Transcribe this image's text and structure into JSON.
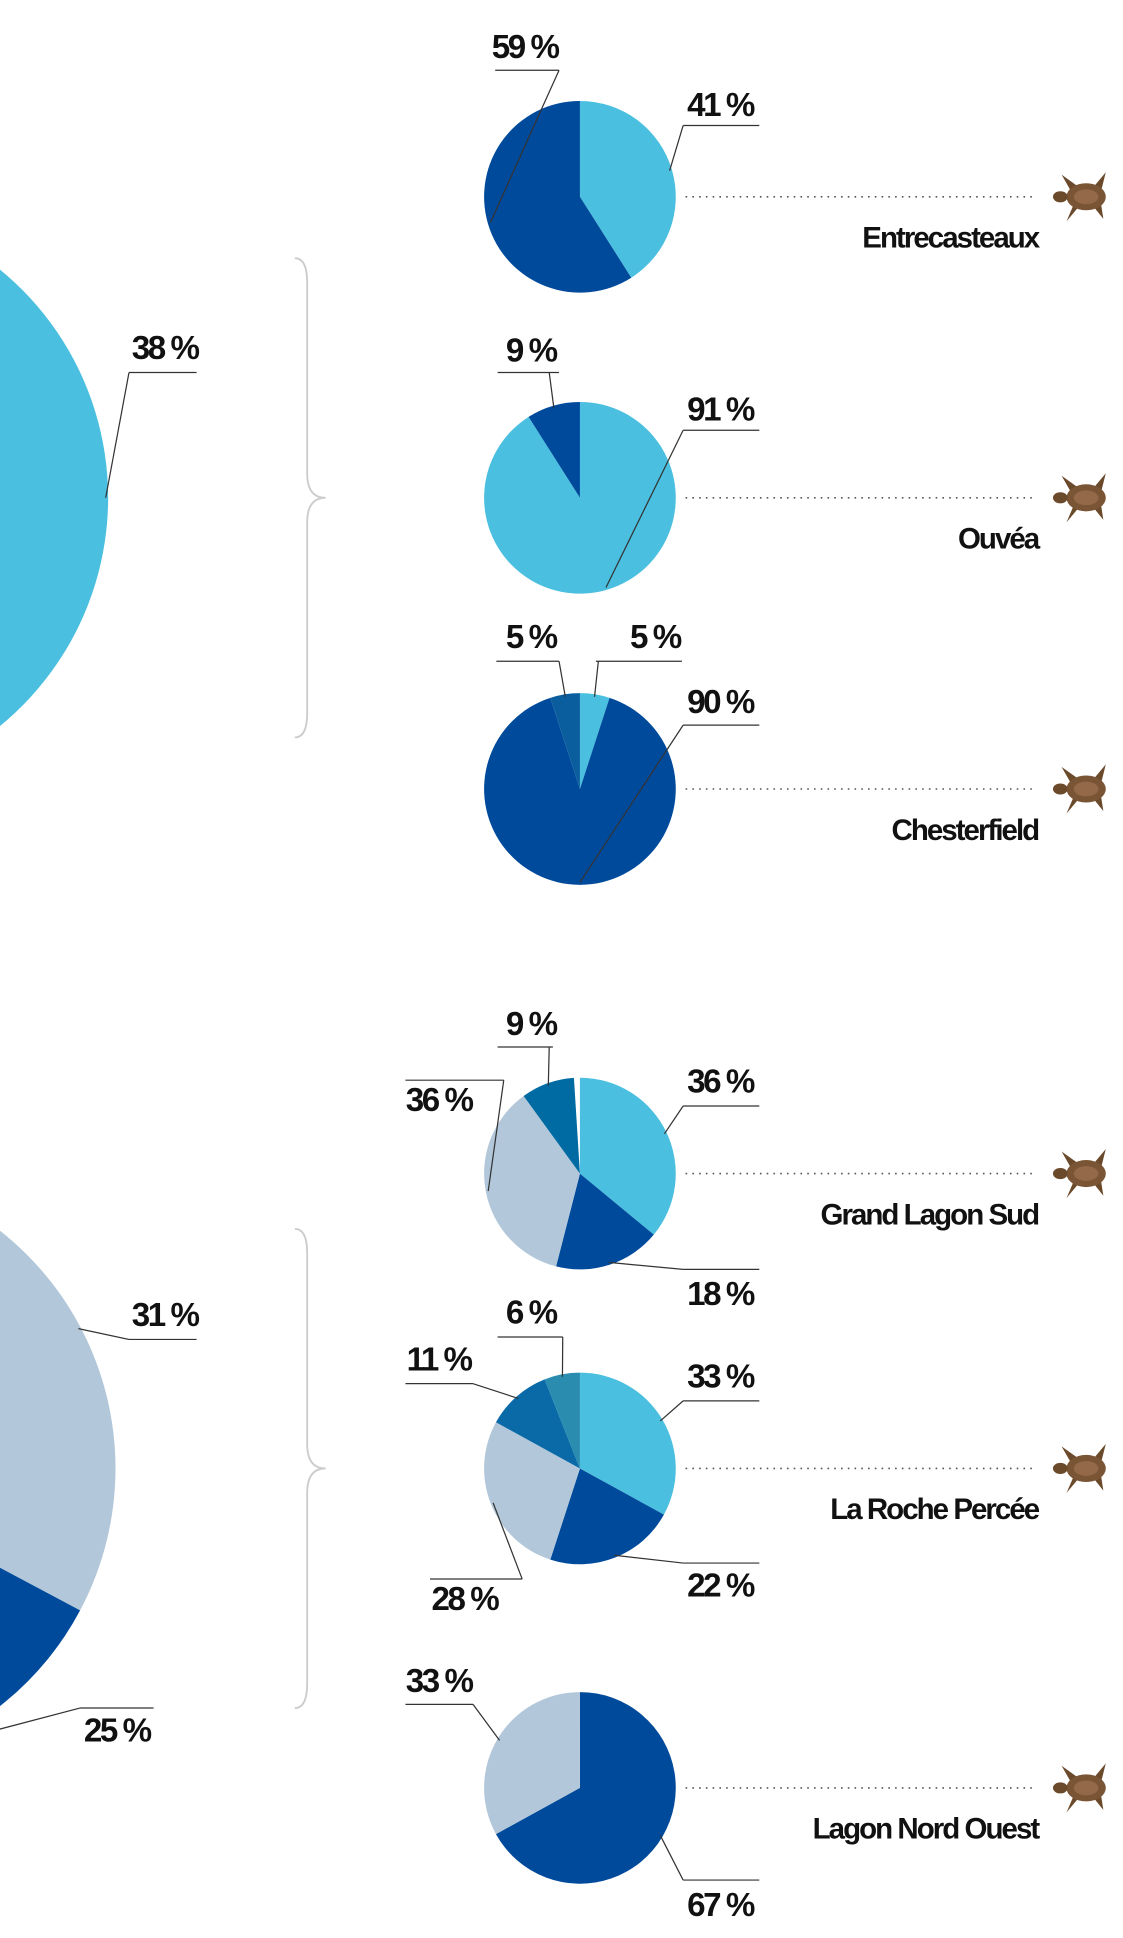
{
  "chart_data": [
    {
      "type": "pie",
      "values": [
        38
      ],
      "value_labels": [
        "38 %"
      ],
      "colors": [
        "#4bbfdf"
      ]
    },
    {
      "type": "pie",
      "values": [
        31,
        25
      ],
      "value_labels": [
        "31 %",
        "25 %"
      ],
      "colors": [
        "#b2c7d9",
        "#004a9c"
      ]
    },
    {
      "type": "pie",
      "label": "Entrecasteaux",
      "values": [
        41,
        59
      ],
      "value_labels": [
        "41 %",
        "59 %"
      ],
      "colors": [
        "#4bbfdf",
        "#004a9c"
      ]
    },
    {
      "type": "pie",
      "label": "Ouvéa",
      "values": [
        91,
        9
      ],
      "value_labels": [
        "91 %",
        "9 %"
      ],
      "colors": [
        "#4bbfdf",
        "#004a9c"
      ]
    },
    {
      "type": "pie",
      "label": "Chesterfield",
      "values": [
        5,
        90,
        5
      ],
      "value_labels": [
        "5 %",
        "90 %",
        "5 %"
      ],
      "colors": [
        "#4bbfdf",
        "#004a9c",
        "#0b5e9e"
      ]
    },
    {
      "type": "pie",
      "label": "Grand Lagon Sud",
      "values": [
        36,
        18,
        36,
        9
      ],
      "value_labels": [
        "36 %",
        "18 %",
        "36 %",
        "9 %"
      ],
      "colors": [
        "#4bbfdf",
        "#004a9c",
        "#b2c7d9",
        "#006aa3"
      ]
    },
    {
      "type": "pie",
      "label": "La Roche Percée",
      "values": [
        33,
        22,
        28,
        11,
        6
      ],
      "value_labels": [
        "33 %",
        "22 %",
        "28 %",
        "11 %",
        "6 %"
      ],
      "colors": [
        "#4bbfdf",
        "#004a9c",
        "#b2c7d9",
        "#0a6aa8",
        "#2a8db0"
      ]
    },
    {
      "type": "pie",
      "label": "Lagon Nord Ouest",
      "values": [
        67,
        33
      ],
      "value_labels": [
        "67 %",
        "33 %"
      ],
      "colors": [
        "#004a9c",
        "#b2c7d9"
      ]
    }
  ]
}
